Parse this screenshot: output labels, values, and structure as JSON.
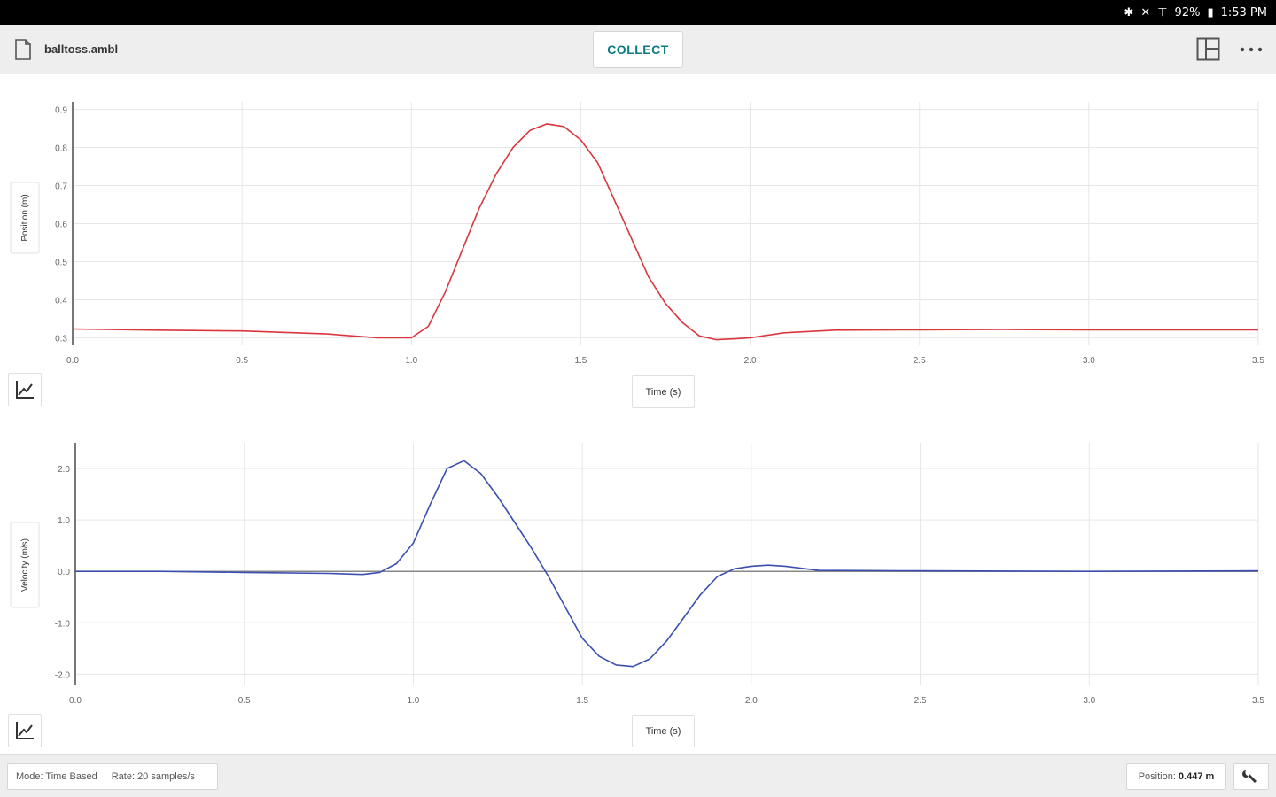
{
  "status_bar": {
    "battery": "92%",
    "time": "1:53 PM"
  },
  "toolbar": {
    "file_name": "balltoss.ambl",
    "collect_label": "COLLECT"
  },
  "footer": {
    "mode": "Mode: Time Based",
    "rate": "Rate: 20 samples/s",
    "position_label": "Position:",
    "position_value": "0.447 m"
  },
  "colors": {
    "position_series": "#d9363e",
    "velocity_series": "#3b4fb0",
    "accent": "#0a7a83"
  },
  "chart_data": [
    {
      "type": "line",
      "xlabel": "Time (s)",
      "ylabel": "Position (m)",
      "xlim": [
        0,
        3.5
      ],
      "ylim": [
        0.28,
        0.92
      ],
      "xticks": [
        "0.0",
        "0.5",
        "1.0",
        "1.5",
        "2.0",
        "2.5",
        "3.0",
        "3.5"
      ],
      "yticks": [
        "0.9",
        "0.8",
        "0.7",
        "0.6",
        "0.5",
        "0.4",
        "0.3"
      ],
      "grid": true,
      "series": [
        {
          "color": "#d9363e",
          "x": [
            0,
            0.25,
            0.5,
            0.75,
            0.9,
            1.0,
            1.05,
            1.1,
            1.15,
            1.2,
            1.25,
            1.3,
            1.35,
            1.4,
            1.45,
            1.5,
            1.55,
            1.6,
            1.65,
            1.7,
            1.75,
            1.8,
            1.85,
            1.9,
            1.95,
            2.0,
            2.1,
            2.25,
            2.5,
            2.75,
            3.0,
            3.25,
            3.5
          ],
          "y": [
            0.323,
            0.32,
            0.318,
            0.31,
            0.3,
            0.3,
            0.33,
            0.42,
            0.53,
            0.64,
            0.73,
            0.8,
            0.845,
            0.862,
            0.855,
            0.82,
            0.76,
            0.66,
            0.56,
            0.46,
            0.39,
            0.34,
            0.305,
            0.295,
            0.297,
            0.3,
            0.313,
            0.32,
            0.321,
            0.322,
            0.321,
            0.321,
            0.321
          ]
        }
      ]
    },
    {
      "type": "line",
      "xlabel": "Time (s)",
      "ylabel": "Velocity (m/s)",
      "xlim": [
        0,
        3.5
      ],
      "ylim": [
        -2.2,
        2.5
      ],
      "xticks": [
        "0.0",
        "0.5",
        "1.0",
        "1.5",
        "2.0",
        "2.5",
        "3.0",
        "3.5"
      ],
      "yticks": [
        "2.0",
        "1.0",
        "0.0",
        "-1.0",
        "-2.0"
      ],
      "grid": true,
      "series": [
        {
          "color": "#3b4fb0",
          "x": [
            0,
            0.25,
            0.5,
            0.75,
            0.85,
            0.9,
            0.95,
            1.0,
            1.05,
            1.1,
            1.15,
            1.2,
            1.25,
            1.3,
            1.35,
            1.4,
            1.45,
            1.5,
            1.55,
            1.6,
            1.65,
            1.7,
            1.75,
            1.8,
            1.85,
            1.9,
            1.95,
            2.0,
            2.05,
            2.1,
            2.2,
            2.5,
            3.0,
            3.5
          ],
          "y": [
            0.0,
            0.0,
            -0.02,
            -0.04,
            -0.06,
            -0.02,
            0.15,
            0.55,
            1.3,
            2.0,
            2.15,
            1.9,
            1.45,
            0.95,
            0.45,
            -0.1,
            -0.7,
            -1.3,
            -1.65,
            -1.82,
            -1.85,
            -1.7,
            -1.35,
            -0.9,
            -0.45,
            -0.1,
            0.05,
            0.1,
            0.12,
            0.1,
            0.02,
            0.01,
            0.0,
            0.01
          ]
        }
      ]
    }
  ]
}
